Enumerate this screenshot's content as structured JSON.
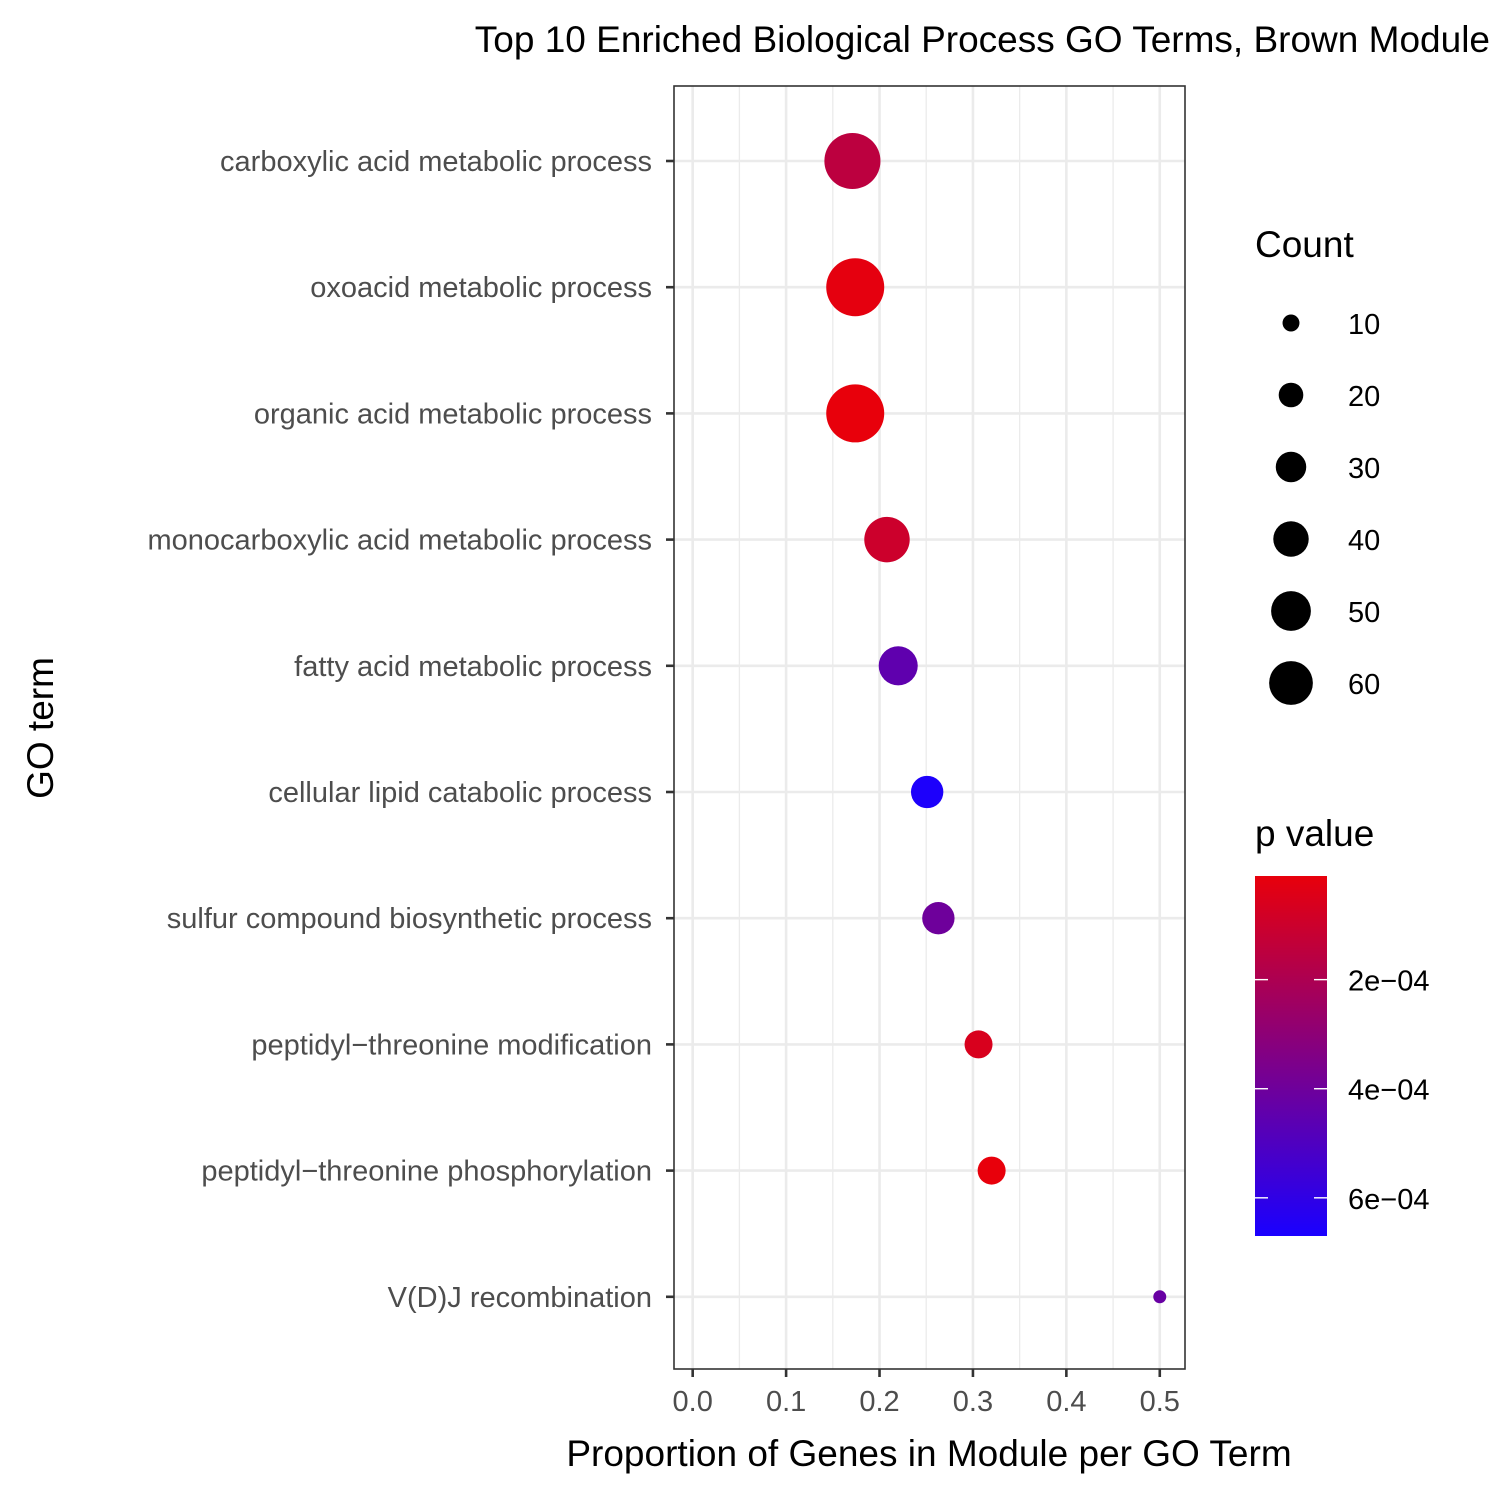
{
  "chart_data": {
    "type": "scatter",
    "title": "Top 10 Enriched Biological Process GO Terms, Brown Module",
    "xlabel": "Proportion of Genes in Module per GO Term",
    "ylabel": "GO term",
    "xlim": [
      -0.02,
      0.527
    ],
    "xticks": [
      "0.0",
      "0.1",
      "0.2",
      "0.3",
      "0.4",
      "0.5"
    ],
    "xtick_values": [
      0,
      0.1,
      0.2,
      0.3,
      0.4,
      0.5
    ],
    "grid": true,
    "points": [
      {
        "term": "carboxylic acid metabolic process",
        "x": 0.171,
        "count": 60,
        "p": 0.00015
      },
      {
        "term": "oxoacid metabolic process",
        "x": 0.174,
        "count": 64,
        "p": 2e-05
      },
      {
        "term": "organic acid metabolic process",
        "x": 0.174,
        "count": 64,
        "p": 1e-05
      },
      {
        "term": "monocarboxylic acid metabolic process",
        "x": 0.208,
        "count": 40,
        "p": 0.0001
      },
      {
        "term": "fatty acid metabolic process",
        "x": 0.22,
        "count": 30,
        "p": 0.00045
      },
      {
        "term": "cellular lipid catabolic process",
        "x": 0.251,
        "count": 21,
        "p": 0.00066
      },
      {
        "term": "sulfur compound biosynthetic process",
        "x": 0.263,
        "count": 21,
        "p": 0.0004
      },
      {
        "term": "peptidyl−threonine modification",
        "x": 0.306,
        "count": 16,
        "p": 6e-05
      },
      {
        "term": "peptidyl−threonine phosphorylation",
        "x": 0.32,
        "count": 16,
        "p": 1e-05
      },
      {
        "term": "V(D)J recombination",
        "x": 0.5,
        "count": 4,
        "p": 0.00042
      }
    ],
    "size_legend": {
      "title": "Count",
      "values": [
        10,
        20,
        30,
        40,
        50,
        60
      ],
      "labels": [
        "10",
        "20",
        "30",
        "40",
        "50",
        "60"
      ]
    },
    "color_legend": {
      "title": "p value",
      "low_color": "#e8000b",
      "high_color": "#1a00ff",
      "range": [
        1e-05,
        0.00067
      ],
      "ticks": [
        0.0002,
        0.0004,
        0.0006
      ],
      "tick_labels": [
        "2e−04",
        "4e−04",
        "6e−04"
      ]
    }
  }
}
